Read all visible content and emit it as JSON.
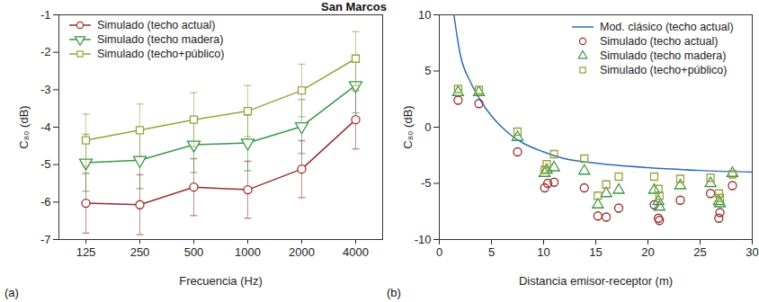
{
  "title": "San Marcos",
  "chart_data": [
    {
      "type": "line",
      "annotations": [
        "(a)"
      ],
      "x_label": "Frecuencia (Hz)",
      "y_label": "C₈₀ (dB)",
      "categories": [
        125,
        250,
        500,
        1000,
        2000,
        4000
      ],
      "ylim": [
        -7,
        -1
      ],
      "yticks": [
        -7,
        -6,
        -5,
        -4,
        -3,
        -2,
        -1
      ],
      "legend": "upper left",
      "series": [
        {
          "name": "Simulado (techo actual)",
          "color": "#9b2d30",
          "marker": "circle",
          "values": [
            -6.03,
            -6.07,
            -5.6,
            -5.67,
            -5.12,
            -3.8
          ],
          "errors": [
            0.8,
            0.8,
            0.76,
            0.76,
            0.76,
            0.78
          ]
        },
        {
          "name": "Simulado (techo madera)",
          "color": "#3a9648",
          "marker": "triangle-down",
          "values": [
            -4.95,
            -4.88,
            -4.47,
            -4.42,
            -3.98,
            -2.88
          ],
          "errors": [
            0.76,
            0.76,
            0.74,
            0.74,
            0.72,
            0.74
          ]
        },
        {
          "name": "Simulado (techo+público)",
          "color": "#9aa33c",
          "marker": "square",
          "values": [
            -4.35,
            -4.08,
            -3.8,
            -3.57,
            -3.02,
            -2.17
          ],
          "errors": [
            0.7,
            0.7,
            0.72,
            0.68,
            0.7,
            0.72
          ]
        }
      ]
    },
    {
      "type": "scatter",
      "annotations": [
        "(b)"
      ],
      "x_label": "Distancia emisor-receptor (m)",
      "y_label": "C₈₀ (dB)",
      "xlim": [
        0,
        30
      ],
      "xticks": [
        0,
        5,
        10,
        15,
        20,
        25,
        30
      ],
      "ylim": [
        -10,
        10
      ],
      "yticks": [
        -10,
        -5,
        0,
        5,
        10
      ],
      "legend": "upper right",
      "series": [
        {
          "name": "Mod. clásico (techo actual)",
          "type": "line",
          "color": "#2e6db4",
          "line_style": "solid",
          "x": [
            1.4,
            2,
            3,
            4,
            5,
            6,
            7,
            8,
            10,
            12,
            15,
            20,
            25,
            30
          ],
          "values": [
            10,
            6.5,
            4,
            2.3,
            1,
            0,
            -0.8,
            -1.4,
            -2.2,
            -2.8,
            -3.2,
            -3.6,
            -3.85,
            -4
          ]
        },
        {
          "name": "Simulado (techo actual)",
          "type": "scatter",
          "color": "#9b2d30",
          "marker": "circle",
          "x": [
            1.8,
            3.8,
            7.5,
            10.1,
            10.4,
            11,
            13.9,
            15.2,
            16,
            17.2,
            20.6,
            21,
            21.1,
            23.1,
            26,
            26.8,
            26.9,
            28.1
          ],
          "values": [
            2.4,
            2.1,
            -2.2,
            -5.4,
            -5,
            -4.9,
            -5.4,
            -7.9,
            -8,
            -7.2,
            -6.9,
            -8.1,
            -8.3,
            -6.5,
            -5.9,
            -8.1,
            -7.6,
            -5.2
          ]
        },
        {
          "name": "Simulado (techo madera)",
          "type": "scatter",
          "color": "#3a9648",
          "marker": "triangle",
          "x": [
            1.8,
            3.8,
            7.5,
            10.1,
            10.3,
            11,
            13.9,
            15.2,
            16,
            17.2,
            20.6,
            21,
            21.1,
            23.1,
            26,
            26.8,
            26.9,
            28.1
          ],
          "values": [
            3.1,
            3.1,
            -0.9,
            -4.1,
            -3.8,
            -3.6,
            -3.9,
            -6.9,
            -5.9,
            -5.6,
            -5.6,
            -6.6,
            -7.1,
            -5.2,
            -5,
            -6.6,
            -6.8,
            -4.1
          ]
        },
        {
          "name": "Simulado (techo+público)",
          "type": "scatter",
          "color": "#9aa33c",
          "marker": "square",
          "x": [
            1.8,
            3.8,
            7.5,
            10.1,
            10.3,
            11,
            13.9,
            15.2,
            16,
            17.2,
            20.6,
            21,
            21.1,
            23.1,
            26,
            26.8,
            26.9,
            28.1
          ],
          "values": [
            3.4,
            3.3,
            -0.4,
            -3.8,
            -3.3,
            -2.4,
            -2.8,
            -6.1,
            -5.1,
            -4.4,
            -4.4,
            -5.5,
            -6.1,
            -4.6,
            -4.5,
            -5.9,
            -6.3,
            -4.2
          ]
        }
      ]
    }
  ]
}
